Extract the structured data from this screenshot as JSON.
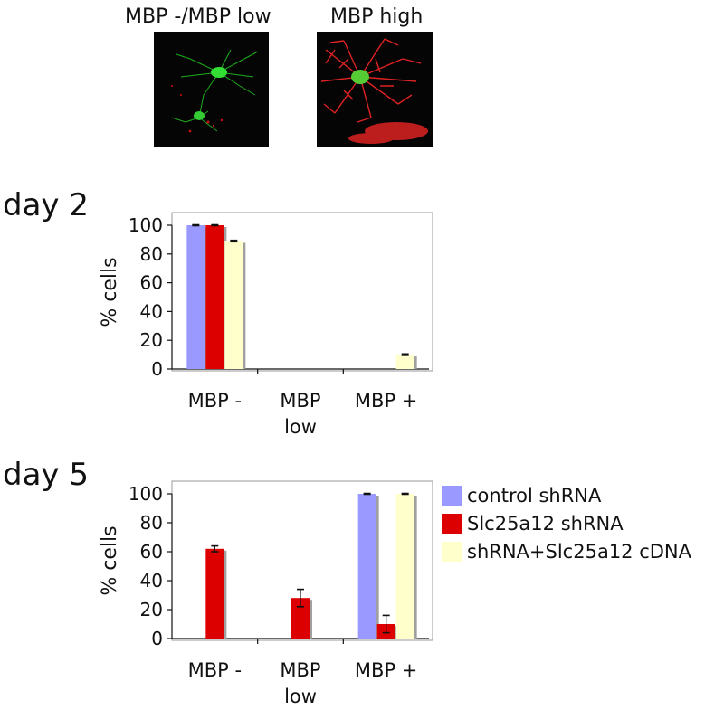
{
  "micrographs": [
    {
      "label": "MBP -/MBP low"
    },
    {
      "label": "MBP high"
    }
  ],
  "colors": {
    "control": "#9999ff",
    "slc_shrna": "#dd0000",
    "rescue": "#ffffcc",
    "shadow": "#a0a0a0",
    "frame": "#9a9a9a"
  },
  "legend": [
    {
      "label": "control shRNA",
      "color": "#9999ff"
    },
    {
      "label": "Slc25a12 shRNA",
      "color": "#dd0000"
    },
    {
      "label": "shRNA+Slc25a12 cDNA",
      "color": "#ffffcc"
    }
  ],
  "chart_data": [
    {
      "type": "bar",
      "panel_label": "day 2",
      "ylabel": "% cells",
      "ylim": [
        0,
        100
      ],
      "yticks": [
        "0",
        "20",
        "40",
        "60",
        "80",
        "100"
      ],
      "categories": [
        {
          "line1": "MBP -",
          "line2": ""
        },
        {
          "line1": "MBP",
          "line2": "low"
        },
        {
          "line1": "MBP +",
          "line2": ""
        }
      ],
      "series": [
        {
          "values": [
            100,
            0,
            0
          ],
          "errors": [
            0.3,
            0,
            0
          ]
        },
        {
          "values": [
            100,
            0,
            0
          ],
          "errors": [
            0.3,
            0,
            0
          ]
        },
        {
          "values": [
            89,
            0,
            10
          ],
          "errors": [
            0.5,
            0,
            0.5
          ]
        }
      ]
    },
    {
      "type": "bar",
      "panel_label": "day 5",
      "ylabel": "% cells",
      "ylim": [
        0,
        100
      ],
      "yticks": [
        "0",
        "20",
        "40",
        "60",
        "80",
        "100"
      ],
      "categories": [
        {
          "line1": "MBP -",
          "line2": ""
        },
        {
          "line1": "MBP",
          "line2": "low"
        },
        {
          "line1": "MBP +",
          "line2": ""
        }
      ],
      "series": [
        {
          "values": [
            0,
            0,
            100
          ],
          "errors": [
            0,
            0,
            0.3
          ]
        },
        {
          "values": [
            62,
            28,
            10
          ],
          "errors": [
            2,
            6,
            6
          ]
        },
        {
          "values": [
            0,
            0,
            100
          ],
          "errors": [
            0,
            0,
            0.3
          ]
        }
      ]
    }
  ]
}
